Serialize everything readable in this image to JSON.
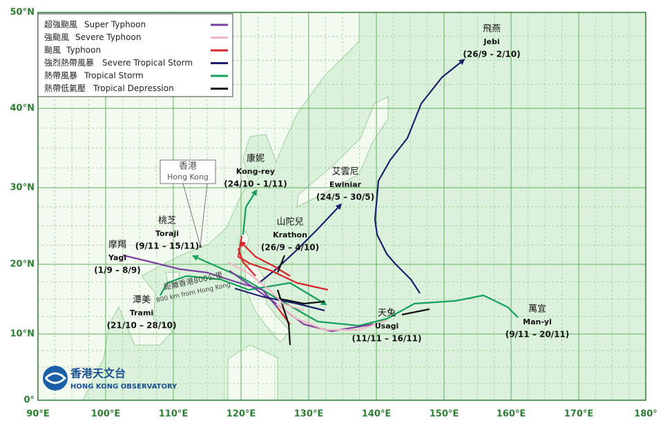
{
  "lat_labels": [
    "50°N",
    "40°N",
    "30°N",
    "20°N",
    "10°N",
    "0°"
  ],
  "lon_labels": [
    "90°E",
    "100°E",
    "110°E",
    "120°E",
    "130°E",
    "140°E",
    "150°E",
    "160°E",
    "170°E",
    "180°"
  ],
  "legend": [
    {
      "zh": "超強颱風",
      "en": "Super Typhoon",
      "color": "#7b3fa0"
    },
    {
      "zh": "強颱風",
      "en": "Severe Typhoon",
      "color": "#f0b4c4"
    },
    {
      "zh": "颱風",
      "en": "Typhoon",
      "color": "#d9232a"
    },
    {
      "zh": "強烈熱帶風暴",
      "en": "Severe Tropical Storm",
      "color": "#1c1f6b"
    },
    {
      "zh": "熱帶風暴",
      "en": "Tropical Storm",
      "color": "#12a05a"
    },
    {
      "zh": "熱帶低氣壓",
      "en": "Tropical Depression",
      "color": "#111111"
    }
  ],
  "storms": [
    {
      "zh": "飛燕",
      "en": "Jebi",
      "dates": "(26/9 - 2/10)"
    },
    {
      "zh": "康妮",
      "en": "Kong-rey",
      "dates": "(24/10 - 1/11)"
    },
    {
      "zh": "艾雲尼",
      "en": "Ewiniar",
      "dates": "(24/5 – 30/5)"
    },
    {
      "zh": "山陀兒",
      "en": "Krathon",
      "dates": "(26/9 – 4/10)"
    },
    {
      "zh": "桃芝",
      "en": "Toraji",
      "dates": "(9/11 – 15/11)"
    },
    {
      "zh": "摩羯",
      "en": "Yagi",
      "dates": "(1/9 – 8/9)"
    },
    {
      "zh": "潭美",
      "en": "Trami",
      "dates": "(21/10 – 28/10)"
    },
    {
      "zh": "天兔",
      "en": "Usagi",
      "dates": "(11/11 – 16/11)"
    },
    {
      "zh": "萬宜",
      "en": "Man-yi",
      "dates": "(9/11 – 20/11)"
    }
  ],
  "hong_kong": {
    "zh": "香港",
    "en": "Hong Kong"
  },
  "radius_note": {
    "zh": "距離香港800公里",
    "en": "800 km from Hong Kong"
  },
  "logo": {
    "zh": "香港天文台",
    "en": "HONG KONG OBSERVATORY"
  }
}
